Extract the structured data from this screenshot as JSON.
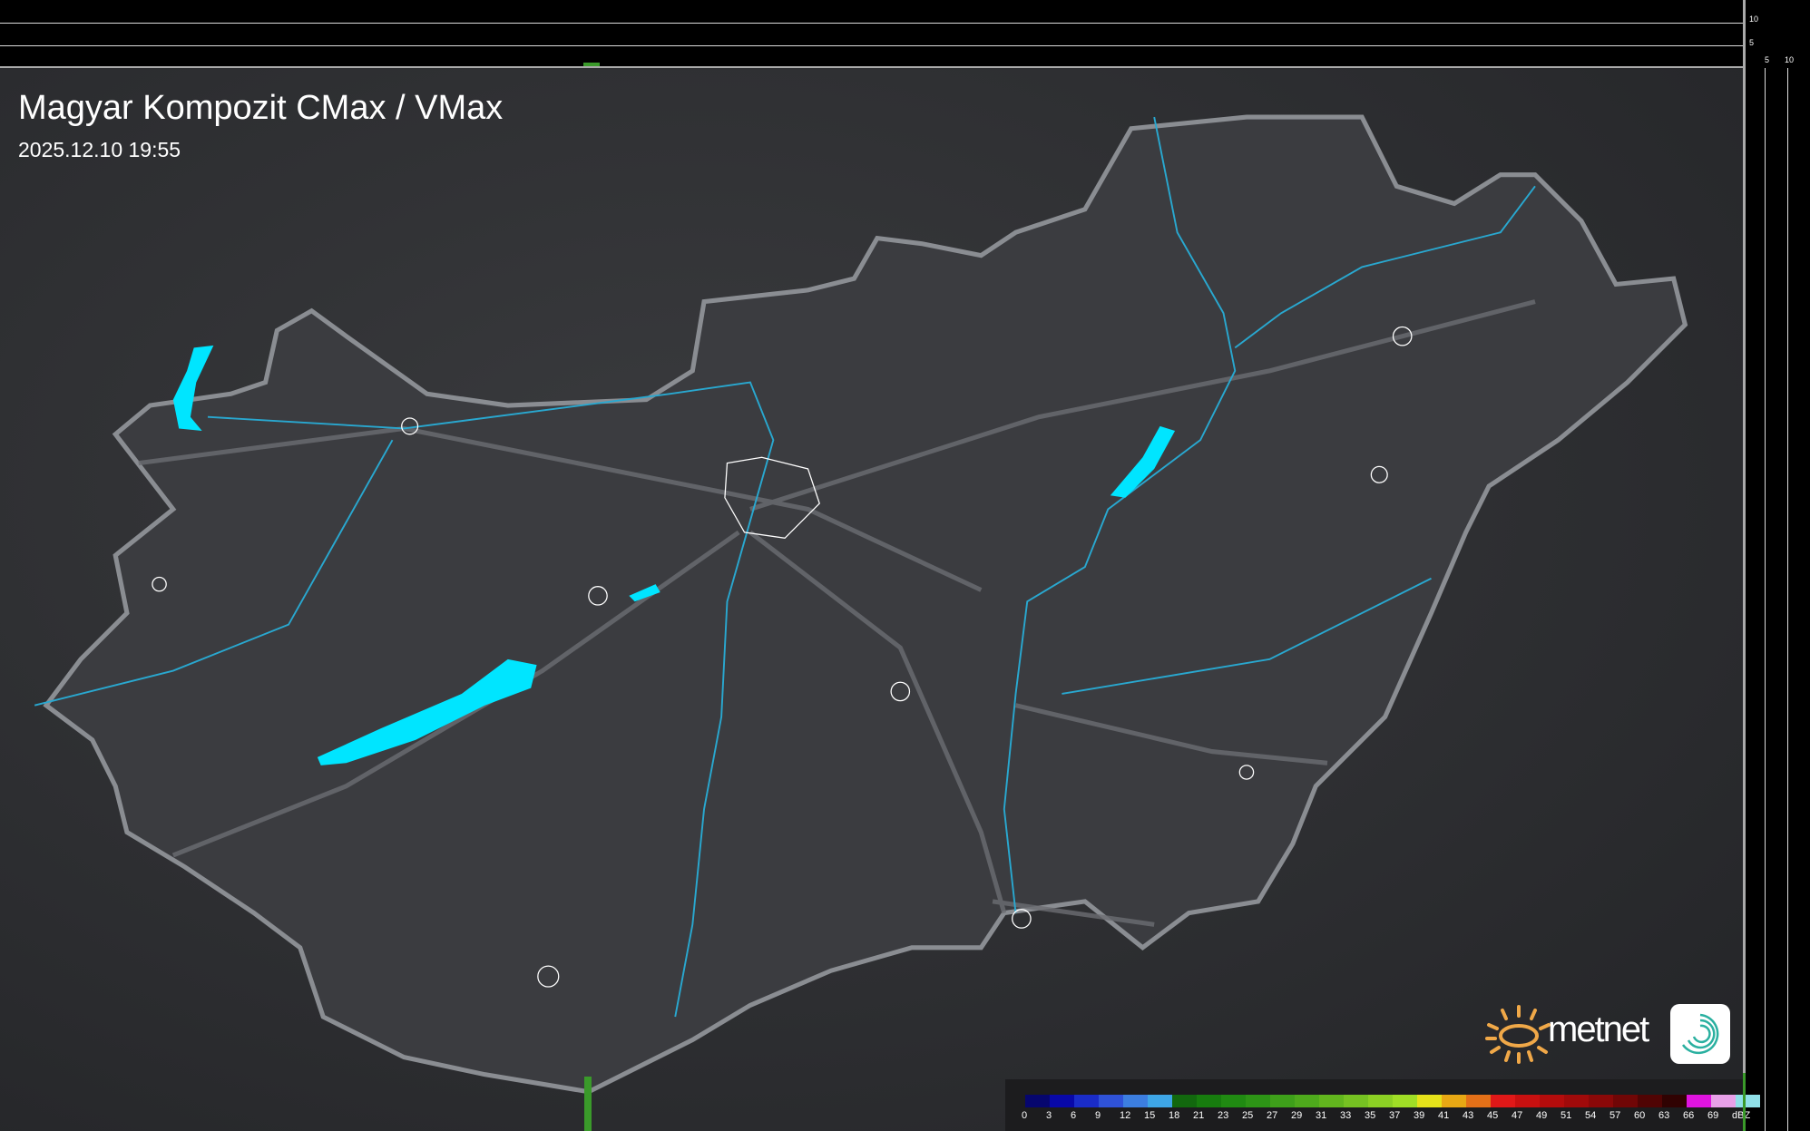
{
  "header": {
    "title": "Magyar Kompozit CMax / VMax",
    "timestamp": "2025.12.10 19:55"
  },
  "side_scale": {
    "vertical": [
      "10",
      "5"
    ],
    "horizontal": [
      "5",
      "10"
    ]
  },
  "legend": {
    "unit": "dBZ",
    "labels": [
      "0",
      "3",
      "6",
      "9",
      "12",
      "15",
      "18",
      "21",
      "23",
      "25",
      "27",
      "29",
      "31",
      "33",
      "35",
      "37",
      "39",
      "41",
      "43",
      "45",
      "47",
      "49",
      "51",
      "54",
      "57",
      "60",
      "63",
      "66",
      "69",
      "dBZ"
    ],
    "colors": [
      "#06066e",
      "#0808a8",
      "#1a2cc8",
      "#2f52d8",
      "#3c7ee0",
      "#3ea6e6",
      "#12680e",
      "#177c0e",
      "#208a12",
      "#2d9416",
      "#3ea01a",
      "#4eaa1c",
      "#62b61e",
      "#76c222",
      "#8cd024",
      "#a0de26",
      "#e6e21a",
      "#e8a814",
      "#e47018",
      "#e01818",
      "#c81010",
      "#b40c0c",
      "#a00a0a",
      "#8a0808",
      "#700606",
      "#500404",
      "#300202",
      "#e014e0",
      "#e8a0e8",
      "#90e0e8"
    ]
  },
  "branding": {
    "logo": "metnet"
  },
  "map": {
    "lake_color": "#00e5ff",
    "river_color": "#29a8d0",
    "border_color": "#8a8d92"
  }
}
